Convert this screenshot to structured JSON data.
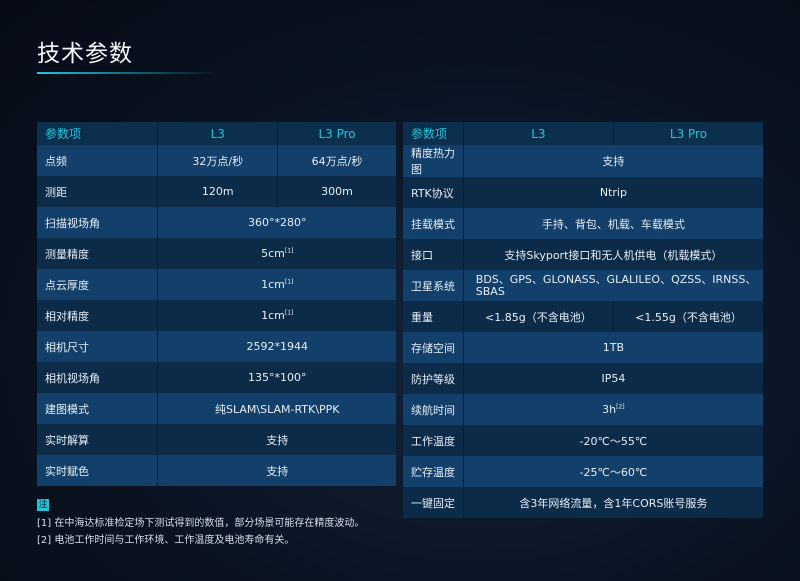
{
  "title": "技术参数",
  "headers": [
    "参数项",
    "L3",
    "L3 Pro"
  ],
  "left": [
    {
      "label": "点频",
      "l3": "32万点/秒",
      "pro": "64万点/秒"
    },
    {
      "label": "测距",
      "l3": "120m",
      "pro": "300m"
    },
    {
      "label": "扫描视场角",
      "value": "360°*280°"
    },
    {
      "label": "测量精度",
      "value": "5cm",
      "sup": "[1]"
    },
    {
      "label": "点云厚度",
      "value": "1cm",
      "sup": "[1]"
    },
    {
      "label": "相对精度",
      "value": "1cm",
      "sup": "[1]"
    },
    {
      "label": "相机尺寸",
      "value": "2592*1944"
    },
    {
      "label": "相机视场角",
      "value": "135°*100°"
    },
    {
      "label": "建图模式",
      "value": "纯SLAM\\SLAM-RTK\\PPK"
    },
    {
      "label": "实时解算",
      "value": "支持"
    },
    {
      "label": "实时赋色",
      "value": "支持"
    }
  ],
  "right": [
    {
      "label": "精度热力图",
      "value": "支持"
    },
    {
      "label": "RTK协议",
      "value": "Ntrip"
    },
    {
      "label": "挂载模式",
      "value": "手持、背包、机载、车载模式"
    },
    {
      "label": "接口",
      "value": "支持Skyport接口和无人机供电（机载模式）"
    },
    {
      "label": "卫星系统",
      "value": "BDS、GPS、GLONASS、GLALILEO、QZSS、IRNSS、SBAS"
    },
    {
      "label": "重量",
      "l3": "<1.85g（不含电池）",
      "pro": "<1.55g（不含电池）"
    },
    {
      "label": "存储空间",
      "value": "1TB"
    },
    {
      "label": "防护等级",
      "value": "IP54"
    },
    {
      "label": "续航时间",
      "value": "3h",
      "sup": "[2]"
    },
    {
      "label": "工作温度",
      "value": "-20℃～55℃"
    },
    {
      "label": "贮存温度",
      "value": "-25℃～60℃"
    },
    {
      "label": "一键固定",
      "value": "含3年网络流量，含1年CORS账号服务"
    }
  ],
  "notes": {
    "badge": "注",
    "items": [
      "[1] 在中海达标准检定场下测试得到的数值，部分场景可能存在精度波动。",
      "[2] 电池工作时间与工作环境、工作温度及电池寿命有关。"
    ]
  }
}
